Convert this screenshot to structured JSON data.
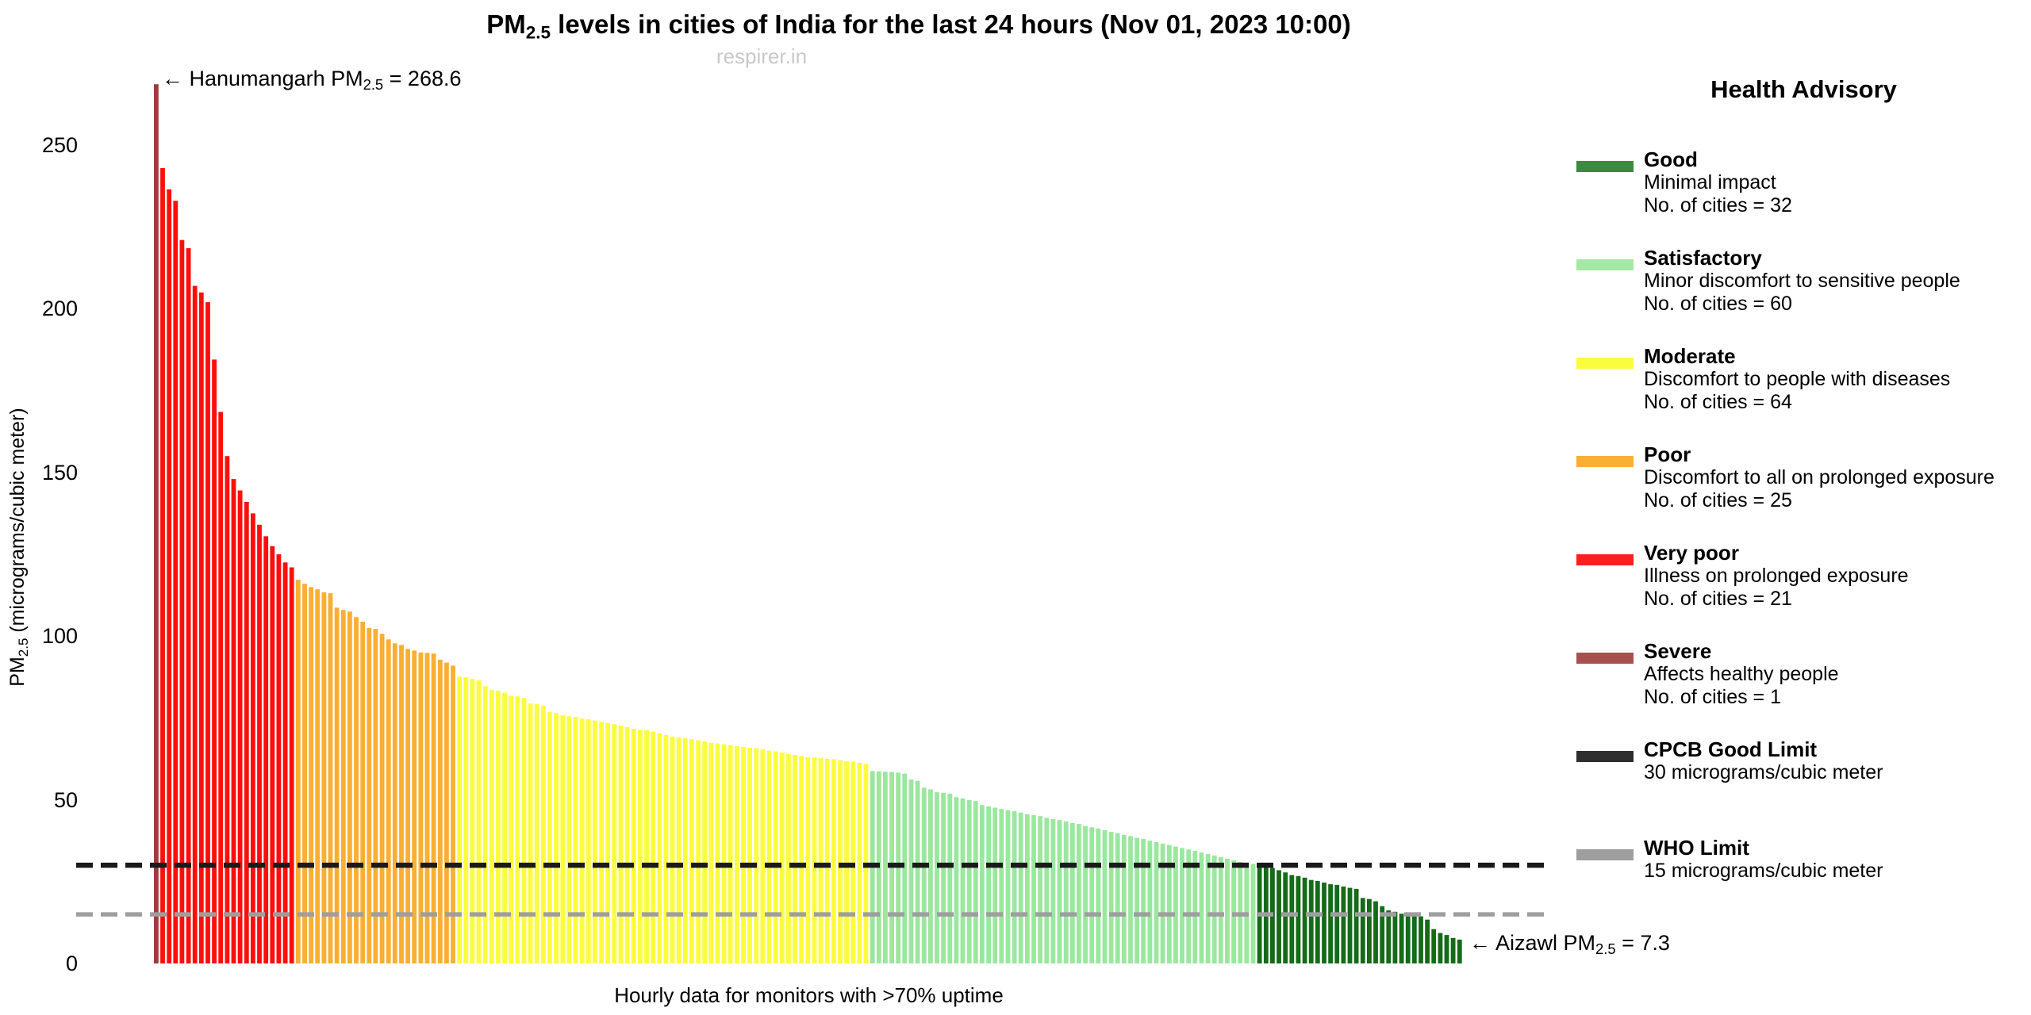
{
  "title": {
    "pm": "PM",
    "sub": "2.5",
    "rest": " levels in cities of India for the last 24 hours (Nov 01, 2023 10:00)"
  },
  "watermark": "respirer.in",
  "yaxis": {
    "pm": "PM",
    "sub": "2.5",
    "rest": " (micrograms/cubic meter)"
  },
  "xaxis": {
    "label": "Hourly data for monitors with >70% uptime"
  },
  "annotations": {
    "max": {
      "prefix": "← Hanumangarh PM",
      "sub": "2.5",
      "suffix": " = 268.6"
    },
    "min": {
      "prefix": "← Aizawl PM",
      "sub": "2.5",
      "suffix": " = 7.3"
    }
  },
  "legend": {
    "title": "Health Advisory",
    "entries": [
      {
        "name": "Good",
        "color": "#3B8A3E",
        "lines": [
          "Minimal impact",
          "No. of cities = 32"
        ]
      },
      {
        "name": "Satisfactory",
        "color": "#A5E8A5",
        "lines": [
          "Minor discomfort to sensitive people",
          "No. of cities = 60"
        ]
      },
      {
        "name": "Moderate",
        "color": "#FCFC3E",
        "lines": [
          "Discomfort to people with diseases",
          "No. of cities = 64"
        ]
      },
      {
        "name": "Poor",
        "color": "#F9AF33",
        "lines": [
          "Discomfort to all on prolonged exposure",
          "No. of cities = 25"
        ]
      },
      {
        "name": "Very poor",
        "color": "#FB2020",
        "lines": [
          "Illness on prolonged exposure",
          "No. of cities = 21"
        ]
      },
      {
        "name": "Severe",
        "color": "#A85050",
        "lines": [
          "Affects healthy people",
          "No. of cities = 1"
        ]
      },
      {
        "name": "CPCB Good Limit",
        "color": "#2E2E2E",
        "lines": [
          "30 micrograms/cubic meter"
        ]
      },
      {
        "name": "WHO Limit",
        "color": "#9E9E9E",
        "lines": [
          "15 micrograms/cubic meter"
        ]
      }
    ]
  },
  "chart_data": {
    "type": "bar",
    "title": "PM2.5 levels in cities of India for the last 24 hours (Nov 01, 2023 10:00)",
    "xlabel": "Hourly data for monitors with >70% uptime",
    "ylabel": "PM2.5 (micrograms/cubic meter)",
    "ylim": [
      0,
      270
    ],
    "yticks": [
      0,
      50,
      100,
      150,
      200,
      250
    ],
    "grid": false,
    "legend_position": "right",
    "highlight_max": {
      "city": "Hanumangarh",
      "value": 268.6
    },
    "highlight_min": {
      "city": "Aizawl",
      "value": 7.3
    },
    "reference_lines": [
      {
        "name": "CPCB Good Limit",
        "value": 30,
        "color": "#1A1A1A",
        "style": "dashed"
      },
      {
        "name": "WHO Limit",
        "value": 15,
        "color": "#9E9E9E",
        "style": "dashed"
      }
    ],
    "segments": [
      {
        "category": "Severe",
        "color": "#A13B3B",
        "values": [
          268.6
        ]
      },
      {
        "category": "Very poor",
        "color": "#FB0F0C",
        "values": [
          243.0,
          236.5,
          233.0,
          221.0,
          218.5,
          207.0,
          205.0,
          202.0,
          184.5,
          168.5,
          155.0,
          148.0,
          144.5,
          141.0,
          137.5,
          134.0,
          130.5,
          127.5,
          125.0,
          122.5,
          121.0
        ]
      },
      {
        "category": "Poor",
        "color": "#F9AF33",
        "values": [
          117.2,
          116.0,
          115.0,
          114.3,
          113.4,
          113.1,
          108.7,
          108.0,
          107.5,
          105.8,
          104.4,
          102.5,
          102.2,
          100.7,
          99.0,
          97.8,
          97.3,
          96.1,
          95.6,
          95.0,
          94.9,
          94.7,
          92.8,
          91.9,
          91.0
        ]
      },
      {
        "category": "Moderate",
        "color": "#FCFC3E",
        "values": [
          87.6,
          87.4,
          86.9,
          86.5,
          84.7,
          83.5,
          83.3,
          82.7,
          81.8,
          81.6,
          81.1,
          79.4,
          79.2,
          78.7,
          76.8,
          76.5,
          75.8,
          75.5,
          75.3,
          74.8,
          74.6,
          74.2,
          73.8,
          73.4,
          73.1,
          72.7,
          72.2,
          71.7,
          71.4,
          71.3,
          70.8,
          70.3,
          69.8,
          69.3,
          69.0,
          68.9,
          68.5,
          68.2,
          67.8,
          67.4,
          67.2,
          67.0,
          66.7,
          66.4,
          66.1,
          65.9,
          65.8,
          65.4,
          65.0,
          64.8,
          64.4,
          64.0,
          63.7,
          63.4,
          63.0,
          62.9,
          62.7,
          62.5,
          62.4,
          62.1,
          61.8,
          61.6,
          61.3,
          61.0
        ]
      },
      {
        "category": "Satisfactory",
        "color": "#9AE79E",
        "values": [
          58.8,
          58.7,
          58.6,
          58.5,
          58.3,
          58.0,
          56.2,
          55.8,
          53.7,
          53.2,
          52.3,
          52.1,
          51.9,
          50.8,
          50.4,
          49.9,
          49.6,
          48.4,
          48.0,
          47.6,
          47.2,
          46.8,
          46.5,
          46.1,
          45.6,
          45.3,
          45.0,
          44.5,
          44.1,
          43.8,
          43.4,
          42.9,
          42.6,
          42.0,
          41.6,
          41.2,
          40.7,
          40.2,
          39.8,
          39.3,
          38.9,
          38.4,
          38.0,
          37.5,
          37.1,
          36.6,
          36.2,
          35.7,
          35.3,
          34.8,
          34.4,
          33.9,
          33.4,
          33.0,
          32.5,
          32.0,
          31.5,
          31.0,
          30.7,
          30.4
        ]
      },
      {
        "category": "Good",
        "color": "#146B18",
        "values": [
          29.8,
          29.6,
          29.2,
          28.5,
          27.8,
          27.0,
          26.7,
          26.2,
          25.5,
          25.2,
          24.7,
          24.2,
          24.0,
          23.5,
          23.1,
          22.8,
          20.0,
          19.7,
          19.0,
          17.5,
          16.2,
          15.8,
          15.2,
          14.9,
          14.6,
          14.4,
          13.4,
          10.5,
          9.3,
          8.7,
          7.8,
          7.3
        ]
      }
    ]
  }
}
